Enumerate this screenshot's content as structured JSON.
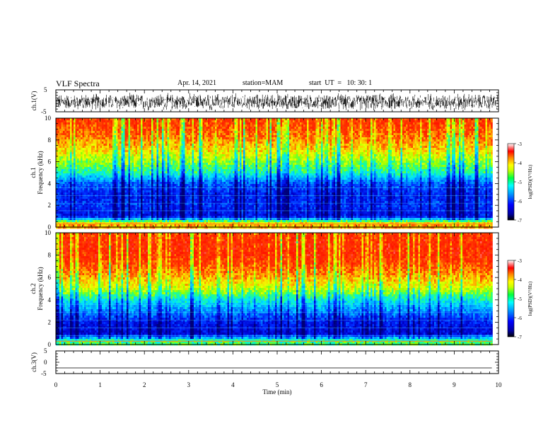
{
  "header": {
    "title": "VLF Spectra",
    "date": "Apr. 14, 2021",
    "station": "station=MAM",
    "start": "start  UT  =   10: 30: 1"
  },
  "colorbar": {
    "label": "log(PSD)(V²/Hz)",
    "ticks": [
      "-3",
      "-4",
      "-5",
      "-6",
      "-7"
    ],
    "colors": [
      "#00008c",
      "#0000ff",
      "#0080ff",
      "#00e5ff",
      "#40ff80",
      "#c8ff00",
      "#ffff00",
      "#ffa000",
      "#ff3000",
      "#ff0000",
      "#ffffff"
    ]
  },
  "chart_data": [
    {
      "type": "line",
      "title": "",
      "ylabel": "ch.1(V)",
      "xlabel": "",
      "xlim": [
        0,
        10
      ],
      "ylim": [
        -5,
        5
      ],
      "yticks": [
        "5",
        "-5"
      ],
      "series": [
        {
          "values_desc": "dense broadband noise",
          "mean": -0.5,
          "amplitude": 4
        }
      ]
    },
    {
      "type": "heatmap",
      "ylabel": "ch.1 Frequency (kHz)",
      "xlim": [
        0,
        9.85
      ],
      "ylim": [
        0,
        10
      ],
      "yticks": [
        "0",
        "2",
        "4",
        "6",
        "8",
        "10"
      ],
      "zlim": [
        -7,
        -3
      ],
      "profile": [
        {
          "f": 0.3,
          "level": -4.2
        },
        {
          "f": 1,
          "level": -6.4
        },
        {
          "f": 2,
          "level": -6.2
        },
        {
          "f": 3,
          "level": -6.3
        },
        {
          "f": 4,
          "level": -6.0
        },
        {
          "f": 5,
          "level": -5.2
        },
        {
          "f": 6,
          "level": -4.8
        },
        {
          "f": 7,
          "level": -4.4
        },
        {
          "f": 8,
          "level": -4.1
        },
        {
          "f": 9,
          "level": -3.9
        },
        {
          "f": 10,
          "level": -3.8
        }
      ]
    },
    {
      "type": "heatmap",
      "ylabel": "ch.2 Frequency (kHz)",
      "xlim": [
        0,
        9.85
      ],
      "ylim": [
        0,
        10
      ],
      "yticks": [
        "0",
        "2",
        "4",
        "6",
        "8",
        "10"
      ],
      "zlim": [
        -7,
        -3
      ],
      "profile": [
        {
          "f": 0.3,
          "level": -5.0
        },
        {
          "f": 1,
          "level": -6.5
        },
        {
          "f": 2,
          "level": -6.3
        },
        {
          "f": 3,
          "level": -5.8
        },
        {
          "f": 4,
          "level": -5.3
        },
        {
          "f": 5,
          "level": -4.6
        },
        {
          "f": 6,
          "level": -4.2
        },
        {
          "f": 7,
          "level": -3.9
        },
        {
          "f": 8,
          "level": -3.7
        },
        {
          "f": 9,
          "level": -3.7
        },
        {
          "f": 10,
          "level": -3.8
        }
      ]
    },
    {
      "type": "line",
      "ylabel": "ch.3(V)",
      "xlabel": "Time (min)",
      "xlim": [
        0,
        10
      ],
      "ylim": [
        -5,
        5
      ],
      "yticks": [
        "5",
        "0",
        "-5"
      ],
      "xticks": [
        "0",
        "1",
        "2",
        "3",
        "4",
        "5",
        "6",
        "7",
        "8",
        "9",
        "10"
      ],
      "series": [
        {
          "values_desc": "flat",
          "mean": -2.5,
          "amplitude": 0
        }
      ]
    }
  ]
}
